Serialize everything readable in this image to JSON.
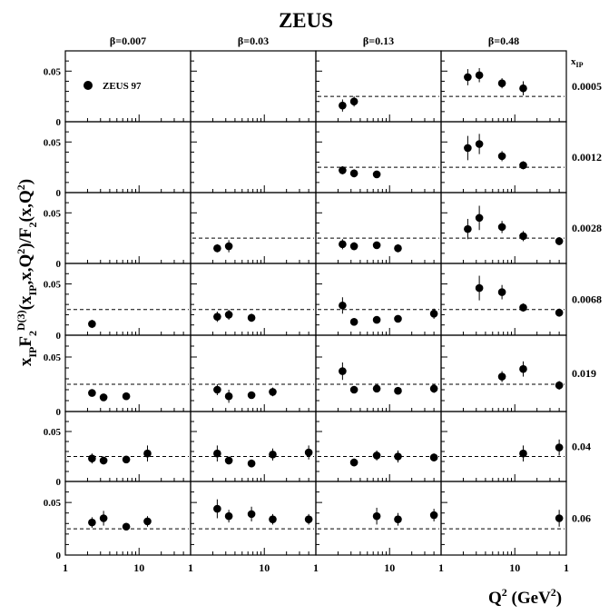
{
  "chart_data": {
    "type": "scatter",
    "title": "ZEUS",
    "ylabel_parts": {
      "a": "x",
      "b": "IP",
      "c": "F",
      "d": "2",
      "e": "D(3)",
      "f": "(x",
      "g": "IP",
      "h": ",x,Q",
      "i": "2",
      "j": ")/F",
      "k": "2",
      "l": "(x,Q",
      "m": "2",
      "n": ")"
    },
    "xlabel_parts": {
      "a": "Q",
      "b": "2",
      "c": " (GeV",
      "d": "2",
      "e": ")"
    },
    "columns": [
      "β=0.007",
      "β=0.03",
      "β=0.13",
      "β=0.48"
    ],
    "row_header": {
      "main": "x",
      "sub": "IP"
    },
    "rows": [
      "0.0005",
      "0.0012",
      "0.0028",
      "0.0068",
      "0.019",
      "0.04",
      "0.06"
    ],
    "legend": {
      "label": "ZEUS 97",
      "position": "top-left"
    },
    "x_axis": {
      "scale": "log",
      "range": [
        1,
        50
      ],
      "ticks": [
        "1",
        "10"
      ]
    },
    "y_axis": {
      "range": [
        0,
        0.07
      ],
      "ticks": [
        "0",
        "0.05"
      ]
    },
    "reference_line": 0.025,
    "panels": [
      {
        "row": 0,
        "col": 0,
        "line": false,
        "points": []
      },
      {
        "row": 0,
        "col": 1,
        "line": false,
        "points": []
      },
      {
        "row": 0,
        "col": 2,
        "line": true,
        "points": [
          {
            "x": 2.3,
            "y": 0.016,
            "e": 0.006
          },
          {
            "x": 3.3,
            "y": 0.02,
            "e": 0.005
          }
        ]
      },
      {
        "row": 0,
        "col": 3,
        "line": true,
        "points": [
          {
            "x": 2.3,
            "y": 0.044,
            "e": 0.008
          },
          {
            "x": 3.3,
            "y": 0.046,
            "e": 0.007
          },
          {
            "x": 6.7,
            "y": 0.038,
            "e": 0.005
          },
          {
            "x": 13,
            "y": 0.033,
            "e": 0.007
          }
        ]
      },
      {
        "row": 1,
        "col": 0,
        "line": false,
        "points": []
      },
      {
        "row": 1,
        "col": 1,
        "line": false,
        "points": []
      },
      {
        "row": 1,
        "col": 2,
        "line": true,
        "points": [
          {
            "x": 2.3,
            "y": 0.022,
            "e": 0.004
          },
          {
            "x": 3.3,
            "y": 0.019,
            "e": 0.004
          },
          {
            "x": 6.7,
            "y": 0.018,
            "e": 0.003
          }
        ]
      },
      {
        "row": 1,
        "col": 3,
        "line": true,
        "points": [
          {
            "x": 2.3,
            "y": 0.044,
            "e": 0.012
          },
          {
            "x": 3.3,
            "y": 0.048,
            "e": 0.01
          },
          {
            "x": 6.7,
            "y": 0.036,
            "e": 0.005
          },
          {
            "x": 13,
            "y": 0.027,
            "e": 0.004
          }
        ]
      },
      {
        "row": 2,
        "col": 0,
        "line": false,
        "points": []
      },
      {
        "row": 2,
        "col": 1,
        "line": true,
        "points": [
          {
            "x": 2.3,
            "y": 0.015,
            "e": 0.004
          },
          {
            "x": 3.3,
            "y": 0.017,
            "e": 0.006
          }
        ]
      },
      {
        "row": 2,
        "col": 2,
        "line": true,
        "points": [
          {
            "x": 2.3,
            "y": 0.019,
            "e": 0.005
          },
          {
            "x": 3.3,
            "y": 0.017,
            "e": 0.004
          },
          {
            "x": 6.7,
            "y": 0.018,
            "e": 0.003
          },
          {
            "x": 13,
            "y": 0.015,
            "e": 0.004
          }
        ]
      },
      {
        "row": 2,
        "col": 3,
        "line": true,
        "points": [
          {
            "x": 2.3,
            "y": 0.034,
            "e": 0.01
          },
          {
            "x": 3.3,
            "y": 0.045,
            "e": 0.012
          },
          {
            "x": 6.7,
            "y": 0.036,
            "e": 0.006
          },
          {
            "x": 13,
            "y": 0.027,
            "e": 0.005
          },
          {
            "x": 40,
            "y": 0.022,
            "e": 0.004
          }
        ]
      },
      {
        "row": 3,
        "col": 0,
        "line": true,
        "points": [
          {
            "x": 2.3,
            "y": 0.011,
            "e": 0.004
          }
        ]
      },
      {
        "row": 3,
        "col": 1,
        "line": true,
        "points": [
          {
            "x": 2.3,
            "y": 0.018,
            "e": 0.005
          },
          {
            "x": 3.3,
            "y": 0.02,
            "e": 0.005
          },
          {
            "x": 6.7,
            "y": 0.017,
            "e": 0.004
          }
        ]
      },
      {
        "row": 3,
        "col": 2,
        "line": true,
        "points": [
          {
            "x": 2.3,
            "y": 0.029,
            "e": 0.008
          },
          {
            "x": 3.3,
            "y": 0.013,
            "e": 0.003
          },
          {
            "x": 6.7,
            "y": 0.015,
            "e": 0.003
          },
          {
            "x": 13,
            "y": 0.016,
            "e": 0.003
          },
          {
            "x": 40,
            "y": 0.021,
            "e": 0.005
          }
        ]
      },
      {
        "row": 3,
        "col": 3,
        "line": true,
        "points": [
          {
            "x": 3.3,
            "y": 0.046,
            "e": 0.012
          },
          {
            "x": 6.7,
            "y": 0.042,
            "e": 0.007
          },
          {
            "x": 13,
            "y": 0.027,
            "e": 0.004
          },
          {
            "x": 40,
            "y": 0.022,
            "e": 0.004
          }
        ]
      },
      {
        "row": 4,
        "col": 0,
        "line": true,
        "points": [
          {
            "x": 2.3,
            "y": 0.017,
            "e": 0.003
          },
          {
            "x": 3.3,
            "y": 0.013,
            "e": 0.002
          },
          {
            "x": 6.7,
            "y": 0.014,
            "e": 0.002
          }
        ]
      },
      {
        "row": 4,
        "col": 1,
        "line": true,
        "points": [
          {
            "x": 2.3,
            "y": 0.02,
            "e": 0.005
          },
          {
            "x": 3.3,
            "y": 0.014,
            "e": 0.006
          },
          {
            "x": 6.7,
            "y": 0.015,
            "e": 0.003
          },
          {
            "x": 13,
            "y": 0.018,
            "e": 0.004
          }
        ]
      },
      {
        "row": 4,
        "col": 2,
        "line": true,
        "points": [
          {
            "x": 2.3,
            "y": 0.037,
            "e": 0.008
          },
          {
            "x": 3.3,
            "y": 0.02,
            "e": 0.003
          },
          {
            "x": 6.7,
            "y": 0.021,
            "e": 0.003
          },
          {
            "x": 13,
            "y": 0.019,
            "e": 0.003
          },
          {
            "x": 40,
            "y": 0.021,
            "e": 0.004
          }
        ]
      },
      {
        "row": 4,
        "col": 3,
        "line": true,
        "points": [
          {
            "x": 6.7,
            "y": 0.032,
            "e": 0.005
          },
          {
            "x": 13,
            "y": 0.039,
            "e": 0.007
          },
          {
            "x": 40,
            "y": 0.024,
            "e": 0.004
          }
        ]
      },
      {
        "row": 5,
        "col": 0,
        "line": true,
        "points": [
          {
            "x": 2.3,
            "y": 0.023,
            "e": 0.005
          },
          {
            "x": 3.3,
            "y": 0.021,
            "e": 0.004
          },
          {
            "x": 6.7,
            "y": 0.022,
            "e": 0.003
          },
          {
            "x": 13,
            "y": 0.028,
            "e": 0.008
          }
        ]
      },
      {
        "row": 5,
        "col": 1,
        "line": true,
        "points": [
          {
            "x": 2.3,
            "y": 0.028,
            "e": 0.008
          },
          {
            "x": 3.3,
            "y": 0.021,
            "e": 0.004
          },
          {
            "x": 6.7,
            "y": 0.018,
            "e": 0.004
          },
          {
            "x": 13,
            "y": 0.027,
            "e": 0.006
          },
          {
            "x": 40,
            "y": 0.029,
            "e": 0.007
          }
        ]
      },
      {
        "row": 5,
        "col": 2,
        "line": true,
        "points": [
          {
            "x": 3.3,
            "y": 0.019,
            "e": 0.004
          },
          {
            "x": 6.7,
            "y": 0.026,
            "e": 0.005
          },
          {
            "x": 13,
            "y": 0.025,
            "e": 0.006
          },
          {
            "x": 40,
            "y": 0.024,
            "e": 0.004
          }
        ]
      },
      {
        "row": 5,
        "col": 3,
        "line": true,
        "points": [
          {
            "x": 13,
            "y": 0.028,
            "e": 0.008
          },
          {
            "x": 40,
            "y": 0.034,
            "e": 0.008
          }
        ]
      },
      {
        "row": 6,
        "col": 0,
        "line": true,
        "points": [
          {
            "x": 2.3,
            "y": 0.031,
            "e": 0.005
          },
          {
            "x": 3.3,
            "y": 0.035,
            "e": 0.007
          },
          {
            "x": 6.7,
            "y": 0.027,
            "e": 0.002
          },
          {
            "x": 13,
            "y": 0.032,
            "e": 0.005
          }
        ]
      },
      {
        "row": 6,
        "col": 1,
        "line": true,
        "points": [
          {
            "x": 2.3,
            "y": 0.044,
            "e": 0.009
          },
          {
            "x": 3.3,
            "y": 0.037,
            "e": 0.006
          },
          {
            "x": 6.7,
            "y": 0.039,
            "e": 0.007
          },
          {
            "x": 13,
            "y": 0.034,
            "e": 0.005
          },
          {
            "x": 40,
            "y": 0.034,
            "e": 0.005
          }
        ]
      },
      {
        "row": 6,
        "col": 2,
        "line": true,
        "points": [
          {
            "x": 6.7,
            "y": 0.037,
            "e": 0.008
          },
          {
            "x": 13,
            "y": 0.034,
            "e": 0.006
          },
          {
            "x": 40,
            "y": 0.038,
            "e": 0.006
          }
        ]
      },
      {
        "row": 6,
        "col": 3,
        "line": true,
        "points": [
          {
            "x": 40,
            "y": 0.035,
            "e": 0.008
          }
        ]
      }
    ]
  }
}
